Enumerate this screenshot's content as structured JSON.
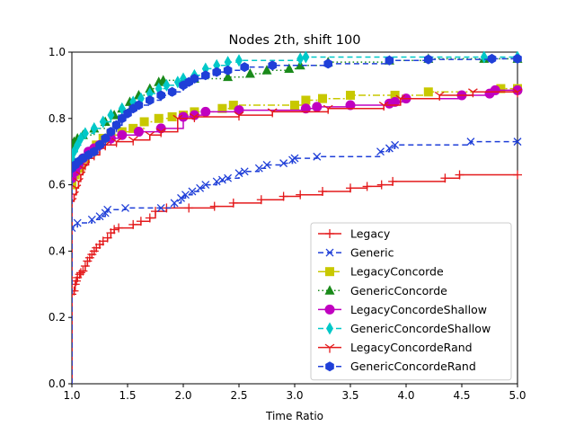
{
  "chart_data": {
    "type": "line",
    "title": "Nodes 2th, shift 100",
    "xlabel": "Time Ratio",
    "ylabel": "",
    "xlim": [
      1.0,
      5.0
    ],
    "ylim": [
      0.0,
      1.0
    ],
    "xticks": [
      "1.0",
      "1.5",
      "2.0",
      "2.5",
      "3.0",
      "3.5",
      "4.0",
      "4.5",
      "5.0"
    ],
    "yticks": [
      "0.0",
      "0.2",
      "0.4",
      "0.6",
      "0.8",
      "1.0"
    ],
    "grid": false,
    "legend_position": "lower right",
    "series": [
      {
        "name": "Legacy",
        "color": "#e41a1c",
        "linestyle": "solid",
        "marker": "plus",
        "points": [
          [
            1.0,
            0.0
          ],
          [
            1.0,
            0.27
          ],
          [
            1.02,
            0.28
          ],
          [
            1.03,
            0.3
          ],
          [
            1.04,
            0.31
          ],
          [
            1.05,
            0.32
          ],
          [
            1.07,
            0.33
          ],
          [
            1.08,
            0.335
          ],
          [
            1.1,
            0.34
          ],
          [
            1.12,
            0.355
          ],
          [
            1.14,
            0.37
          ],
          [
            1.16,
            0.38
          ],
          [
            1.18,
            0.39
          ],
          [
            1.2,
            0.4
          ],
          [
            1.22,
            0.41
          ],
          [
            1.25,
            0.42
          ],
          [
            1.28,
            0.43
          ],
          [
            1.32,
            0.44
          ],
          [
            1.35,
            0.455
          ],
          [
            1.38,
            0.465
          ],
          [
            1.42,
            0.47
          ],
          [
            1.55,
            0.48
          ],
          [
            1.62,
            0.49
          ],
          [
            1.7,
            0.5
          ],
          [
            1.75,
            0.52
          ],
          [
            1.85,
            0.53
          ],
          [
            2.05,
            0.53
          ],
          [
            2.28,
            0.535
          ],
          [
            2.45,
            0.545
          ],
          [
            2.7,
            0.555
          ],
          [
            2.9,
            0.565
          ],
          [
            3.05,
            0.57
          ],
          [
            3.25,
            0.58
          ],
          [
            3.5,
            0.59
          ],
          [
            3.65,
            0.595
          ],
          [
            3.78,
            0.6
          ],
          [
            3.88,
            0.61
          ],
          [
            4.35,
            0.62
          ],
          [
            4.48,
            0.63
          ],
          [
            5.0,
            0.63
          ]
        ]
      },
      {
        "name": "Generic",
        "color": "#1f3fd8",
        "linestyle": "dashed",
        "marker": "x",
        "points": [
          [
            1.0,
            0.0
          ],
          [
            1.0,
            0.47
          ],
          [
            1.05,
            0.485
          ],
          [
            1.18,
            0.495
          ],
          [
            1.25,
            0.505
          ],
          [
            1.3,
            0.515
          ],
          [
            1.32,
            0.525
          ],
          [
            1.48,
            0.53
          ],
          [
            1.8,
            0.53
          ],
          [
            1.92,
            0.545
          ],
          [
            1.98,
            0.56
          ],
          [
            2.02,
            0.57
          ],
          [
            2.08,
            0.58
          ],
          [
            2.15,
            0.59
          ],
          [
            2.2,
            0.6
          ],
          [
            2.3,
            0.61
          ],
          [
            2.35,
            0.615
          ],
          [
            2.4,
            0.62
          ],
          [
            2.5,
            0.635
          ],
          [
            2.55,
            0.64
          ],
          [
            2.68,
            0.65
          ],
          [
            2.75,
            0.66
          ],
          [
            2.9,
            0.665
          ],
          [
            2.98,
            0.675
          ],
          [
            3.0,
            0.68
          ],
          [
            3.2,
            0.685
          ],
          [
            3.77,
            0.7
          ],
          [
            3.85,
            0.71
          ],
          [
            3.9,
            0.72
          ],
          [
            4.58,
            0.73
          ],
          [
            5.0,
            0.73
          ]
        ]
      },
      {
        "name": "LegacyConcorde",
        "color": "#c8c800",
        "linestyle": "dashdot",
        "marker": "square",
        "points": [
          [
            1.0,
            0.0
          ],
          [
            1.0,
            0.6
          ],
          [
            1.03,
            0.63
          ],
          [
            1.07,
            0.65
          ],
          [
            1.12,
            0.68
          ],
          [
            1.18,
            0.7
          ],
          [
            1.22,
            0.72
          ],
          [
            1.28,
            0.74
          ],
          [
            1.35,
            0.75
          ],
          [
            1.45,
            0.76
          ],
          [
            1.55,
            0.77
          ],
          [
            1.65,
            0.79
          ],
          [
            1.78,
            0.8
          ],
          [
            1.9,
            0.805
          ],
          [
            2.0,
            0.81
          ],
          [
            2.1,
            0.82
          ],
          [
            2.35,
            0.83
          ],
          [
            2.45,
            0.84
          ],
          [
            3.0,
            0.84
          ],
          [
            3.1,
            0.855
          ],
          [
            3.25,
            0.86
          ],
          [
            3.5,
            0.87
          ],
          [
            3.9,
            0.87
          ],
          [
            4.2,
            0.88
          ],
          [
            4.85,
            0.89
          ],
          [
            5.0,
            0.89
          ]
        ]
      },
      {
        "name": "GenericConcorde",
        "color": "#1a8a1a",
        "linestyle": "dotted",
        "marker": "triangle-up",
        "points": [
          [
            1.0,
            0.0
          ],
          [
            1.0,
            0.72
          ],
          [
            1.02,
            0.73
          ],
          [
            1.05,
            0.74
          ],
          [
            1.1,
            0.75
          ],
          [
            1.2,
            0.77
          ],
          [
            1.3,
            0.79
          ],
          [
            1.38,
            0.81
          ],
          [
            1.45,
            0.83
          ],
          [
            1.52,
            0.85
          ],
          [
            1.6,
            0.87
          ],
          [
            1.7,
            0.89
          ],
          [
            1.78,
            0.91
          ],
          [
            1.82,
            0.915
          ],
          [
            2.0,
            0.915
          ],
          [
            2.1,
            0.92
          ],
          [
            2.4,
            0.925
          ],
          [
            2.6,
            0.935
          ],
          [
            2.75,
            0.945
          ],
          [
            2.95,
            0.95
          ],
          [
            3.05,
            0.96
          ],
          [
            3.3,
            0.97
          ],
          [
            3.85,
            0.975
          ],
          [
            4.2,
            0.98
          ],
          [
            4.7,
            0.98
          ],
          [
            5.0,
            0.98
          ]
        ]
      },
      {
        "name": "LegacyConcordeShallow",
        "color": "#c000c0",
        "linestyle": "solid",
        "marker": "circle",
        "points": [
          [
            1.0,
            0.0
          ],
          [
            1.0,
            0.62
          ],
          [
            1.03,
            0.64
          ],
          [
            1.06,
            0.66
          ],
          [
            1.1,
            0.68
          ],
          [
            1.15,
            0.7
          ],
          [
            1.2,
            0.71
          ],
          [
            1.25,
            0.72
          ],
          [
            1.35,
            0.74
          ],
          [
            1.45,
            0.75
          ],
          [
            1.6,
            0.76
          ],
          [
            1.8,
            0.77
          ],
          [
            2.0,
            0.805
          ],
          [
            2.1,
            0.81
          ],
          [
            2.2,
            0.82
          ],
          [
            2.5,
            0.825
          ],
          [
            3.1,
            0.83
          ],
          [
            3.2,
            0.835
          ],
          [
            3.5,
            0.84
          ],
          [
            3.85,
            0.845
          ],
          [
            3.9,
            0.85
          ],
          [
            4.0,
            0.86
          ],
          [
            4.5,
            0.87
          ],
          [
            4.75,
            0.875
          ],
          [
            4.8,
            0.885
          ],
          [
            5.0,
            0.885
          ]
        ]
      },
      {
        "name": "GenericConcordeShallow",
        "color": "#00c8c8",
        "linestyle": "dashed",
        "marker": "diamond",
        "points": [
          [
            1.0,
            0.0
          ],
          [
            1.0,
            0.68
          ],
          [
            1.02,
            0.7
          ],
          [
            1.05,
            0.72
          ],
          [
            1.08,
            0.74
          ],
          [
            1.12,
            0.755
          ],
          [
            1.2,
            0.77
          ],
          [
            1.28,
            0.79
          ],
          [
            1.35,
            0.81
          ],
          [
            1.45,
            0.83
          ],
          [
            1.55,
            0.85
          ],
          [
            1.62,
            0.86
          ],
          [
            1.7,
            0.875
          ],
          [
            1.78,
            0.89
          ],
          [
            1.85,
            0.9
          ],
          [
            1.95,
            0.91
          ],
          [
            2.0,
            0.92
          ],
          [
            2.1,
            0.93
          ],
          [
            2.2,
            0.95
          ],
          [
            2.3,
            0.96
          ],
          [
            2.4,
            0.97
          ],
          [
            2.5,
            0.975
          ],
          [
            3.05,
            0.98
          ],
          [
            3.1,
            0.985
          ],
          [
            4.7,
            0.985
          ],
          [
            5.0,
            0.985
          ]
        ]
      },
      {
        "name": "LegacyConcordeRand",
        "color": "#e41a1c",
        "linestyle": "solid",
        "marker": "tri-down",
        "points": [
          [
            1.0,
            0.0
          ],
          [
            1.0,
            0.55
          ],
          [
            1.02,
            0.57
          ],
          [
            1.04,
            0.59
          ],
          [
            1.06,
            0.61
          ],
          [
            1.08,
            0.63
          ],
          [
            1.1,
            0.65
          ],
          [
            1.12,
            0.66
          ],
          [
            1.15,
            0.68
          ],
          [
            1.2,
            0.69
          ],
          [
            1.25,
            0.71
          ],
          [
            1.3,
            0.72
          ],
          [
            1.4,
            0.73
          ],
          [
            1.55,
            0.735
          ],
          [
            1.7,
            0.75
          ],
          [
            1.8,
            0.76
          ],
          [
            1.95,
            0.8
          ],
          [
            2.1,
            0.805
          ],
          [
            2.5,
            0.81
          ],
          [
            2.8,
            0.82
          ],
          [
            3.3,
            0.83
          ],
          [
            3.8,
            0.84
          ],
          [
            3.95,
            0.86
          ],
          [
            4.3,
            0.87
          ],
          [
            4.6,
            0.88
          ],
          [
            5.0,
            0.88
          ]
        ]
      },
      {
        "name": "GenericConcordeRand",
        "color": "#1f3fd8",
        "linestyle": "dashed",
        "marker": "hexagon",
        "points": [
          [
            1.0,
            0.0
          ],
          [
            1.0,
            0.65
          ],
          [
            1.03,
            0.66
          ],
          [
            1.06,
            0.67
          ],
          [
            1.1,
            0.68
          ],
          [
            1.15,
            0.69
          ],
          [
            1.2,
            0.7
          ],
          [
            1.25,
            0.72
          ],
          [
            1.3,
            0.74
          ],
          [
            1.35,
            0.76
          ],
          [
            1.4,
            0.78
          ],
          [
            1.45,
            0.8
          ],
          [
            1.5,
            0.815
          ],
          [
            1.55,
            0.83
          ],
          [
            1.6,
            0.84
          ],
          [
            1.7,
            0.855
          ],
          [
            1.8,
            0.87
          ],
          [
            1.9,
            0.88
          ],
          [
            2.0,
            0.9
          ],
          [
            2.05,
            0.91
          ],
          [
            2.1,
            0.92
          ],
          [
            2.2,
            0.93
          ],
          [
            2.3,
            0.94
          ],
          [
            2.4,
            0.945
          ],
          [
            2.55,
            0.955
          ],
          [
            2.8,
            0.96
          ],
          [
            3.3,
            0.965
          ],
          [
            3.85,
            0.975
          ],
          [
            4.2,
            0.978
          ],
          [
            4.77,
            0.98
          ],
          [
            5.0,
            0.98
          ]
        ]
      }
    ]
  }
}
